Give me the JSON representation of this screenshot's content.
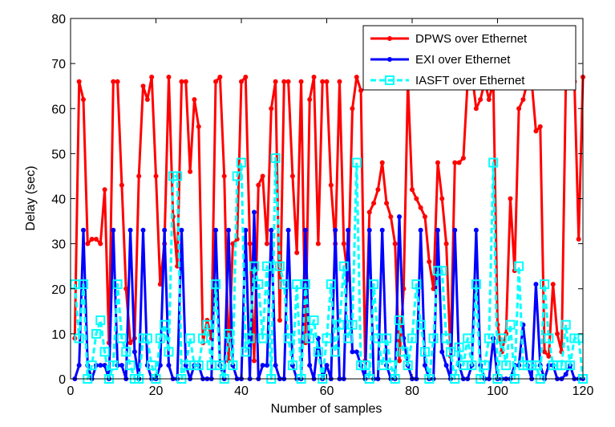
{
  "chart_data": {
    "type": "line",
    "title": "",
    "xlabel": "Number of samples",
    "ylabel": "Delay (sec)",
    "xlim": [
      0,
      120
    ],
    "ylim": [
      0,
      80
    ],
    "xticks": [
      0,
      20,
      40,
      60,
      80,
      100,
      120
    ],
    "yticks": [
      0,
      10,
      20,
      30,
      40,
      50,
      60,
      70,
      80
    ],
    "grid": false,
    "legend_position": "top-right",
    "series": [
      {
        "name": "DPWS over Ethernet",
        "color": "#ff0000",
        "style": "solid",
        "marker": "dot",
        "x": [
          1,
          2,
          3,
          4,
          5,
          6,
          7,
          8,
          9,
          10,
          11,
          12,
          13,
          14,
          15,
          16,
          17,
          18,
          19,
          20,
          21,
          22,
          23,
          24,
          25,
          26,
          27,
          28,
          29,
          30,
          31,
          32,
          33,
          34,
          35,
          36,
          37,
          38,
          39,
          40,
          41,
          42,
          43,
          44,
          45,
          46,
          47,
          48,
          49,
          50,
          51,
          52,
          53,
          54,
          55,
          56,
          57,
          58,
          59,
          60,
          61,
          62,
          63,
          64,
          65,
          66,
          67,
          68,
          69,
          70,
          71,
          72,
          73,
          74,
          75,
          76,
          77,
          78,
          79,
          80,
          81,
          82,
          83,
          84,
          85,
          86,
          87,
          88,
          89,
          90,
          91,
          92,
          93,
          94,
          95,
          96,
          97,
          98,
          99,
          100,
          101,
          102,
          103,
          104,
          105,
          106,
          107,
          108,
          109,
          110,
          111,
          112,
          113,
          114,
          115,
          116,
          117,
          118,
          119,
          120
        ],
        "values": [
          9,
          66,
          62,
          30,
          31,
          31,
          30,
          42,
          8,
          66,
          66,
          43,
          20,
          8,
          9,
          45,
          65,
          62,
          67,
          45,
          21,
          30,
          67,
          36,
          25,
          66,
          66,
          46,
          62,
          56,
          8,
          13,
          9,
          66,
          67,
          45,
          4,
          30,
          31,
          66,
          67,
          30,
          4,
          43,
          45,
          30,
          60,
          66,
          13,
          66,
          66,
          45,
          28,
          66,
          8,
          62,
          67,
          30,
          66,
          66,
          43,
          30,
          66,
          30,
          22,
          60,
          67,
          64,
          4,
          37,
          39,
          42,
          48,
          39,
          36,
          30,
          4,
          20,
          66,
          42,
          40,
          38,
          36,
          26,
          20,
          48,
          40,
          30,
          5,
          48,
          48,
          49,
          66,
          68,
          60,
          62,
          66,
          62,
          66,
          12,
          6,
          10,
          40,
          24,
          60,
          62,
          66,
          66,
          55,
          56,
          6,
          5,
          21,
          10,
          6,
          66,
          66,
          66,
          31,
          67
        ]
      },
      {
        "name": "EXI over Ethernet",
        "color": "#0000ff",
        "style": "solid",
        "marker": "dot",
        "x": [
          1,
          2,
          3,
          4,
          5,
          6,
          7,
          8,
          9,
          10,
          11,
          12,
          13,
          14,
          15,
          16,
          17,
          18,
          19,
          20,
          21,
          22,
          23,
          24,
          25,
          26,
          27,
          28,
          29,
          30,
          31,
          32,
          33,
          34,
          35,
          36,
          37,
          38,
          39,
          40,
          41,
          42,
          43,
          44,
          45,
          46,
          47,
          48,
          49,
          50,
          51,
          52,
          53,
          54,
          55,
          56,
          57,
          58,
          59,
          60,
          61,
          62,
          63,
          64,
          65,
          66,
          67,
          68,
          69,
          70,
          71,
          72,
          73,
          74,
          75,
          76,
          77,
          78,
          79,
          80,
          81,
          82,
          83,
          84,
          85,
          86,
          87,
          88,
          89,
          90,
          91,
          92,
          93,
          94,
          95,
          96,
          97,
          98,
          99,
          100,
          101,
          102,
          103,
          104,
          105,
          106,
          107,
          108,
          109,
          110,
          111,
          112,
          113,
          114,
          115,
          116,
          117,
          118,
          119,
          120
        ],
        "values": [
          0,
          3,
          33,
          3,
          0,
          3,
          3,
          3,
          0,
          33,
          3,
          3,
          0,
          33,
          6,
          0,
          33,
          3,
          0,
          0,
          3,
          33,
          3,
          0,
          0,
          33,
          3,
          0,
          3,
          3,
          0,
          0,
          0,
          33,
          3,
          0,
          33,
          3,
          0,
          0,
          33,
          0,
          37,
          0,
          3,
          3,
          33,
          3,
          0,
          0,
          33,
          3,
          0,
          0,
          33,
          3,
          0,
          9,
          0,
          3,
          0,
          33,
          0,
          0,
          33,
          6,
          6,
          3,
          0,
          33,
          0,
          0,
          33,
          3,
          0,
          0,
          36,
          9,
          3,
          0,
          0,
          33,
          3,
          0,
          0,
          33,
          6,
          3,
          0,
          33,
          3,
          0,
          0,
          3,
          33,
          3,
          0,
          0,
          9,
          0,
          0,
          0,
          0,
          3,
          3,
          12,
          3,
          0,
          21,
          3,
          0,
          3,
          3,
          0,
          0,
          1,
          3,
          0,
          0,
          0
        ]
      },
      {
        "name": "IASFT over Ethernet",
        "color": "#00ffff",
        "style": "dashed",
        "marker": "square",
        "x": [
          1,
          2,
          3,
          4,
          5,
          6,
          7,
          8,
          9,
          10,
          11,
          12,
          13,
          14,
          15,
          16,
          17,
          18,
          19,
          20,
          21,
          22,
          23,
          24,
          25,
          26,
          27,
          28,
          29,
          30,
          31,
          32,
          33,
          34,
          35,
          36,
          37,
          38,
          39,
          40,
          41,
          42,
          43,
          44,
          45,
          46,
          47,
          48,
          49,
          50,
          51,
          52,
          53,
          54,
          55,
          56,
          57,
          58,
          59,
          60,
          61,
          62,
          63,
          64,
          65,
          66,
          67,
          68,
          69,
          70,
          71,
          72,
          73,
          74,
          75,
          76,
          77,
          78,
          79,
          80,
          81,
          82,
          83,
          84,
          85,
          86,
          87,
          88,
          89,
          90,
          91,
          92,
          93,
          94,
          95,
          96,
          97,
          98,
          99,
          100,
          101,
          102,
          103,
          104,
          105,
          106,
          107,
          108,
          109,
          110,
          111,
          112,
          113,
          114,
          115,
          116,
          117,
          118,
          119,
          120
        ],
        "values": [
          21,
          9,
          21,
          0,
          3,
          10,
          13,
          6,
          0,
          3,
          21,
          9,
          6,
          3,
          0,
          0,
          9,
          9,
          3,
          0,
          9,
          12,
          6,
          45,
          45,
          0,
          3,
          9,
          3,
          3,
          9,
          12,
          3,
          21,
          3,
          0,
          10,
          3,
          45,
          48,
          6,
          9,
          25,
          21,
          9,
          25,
          0,
          49,
          25,
          21,
          9,
          3,
          21,
          0,
          21,
          9,
          13,
          6,
          0,
          9,
          21,
          6,
          12,
          25,
          9,
          12,
          48,
          3,
          3,
          0,
          21,
          9,
          3,
          9,
          3,
          0,
          13,
          6,
          3,
          9,
          21,
          12,
          6,
          0,
          9,
          24,
          24,
          9,
          6,
          0,
          7,
          3,
          9,
          3,
          21,
          0,
          3,
          9,
          48,
          0,
          9,
          3,
          12,
          0,
          25,
          3,
          3,
          3,
          3,
          0,
          21,
          9,
          3,
          3,
          3,
          12,
          3,
          9,
          9,
          0
        ]
      }
    ]
  }
}
